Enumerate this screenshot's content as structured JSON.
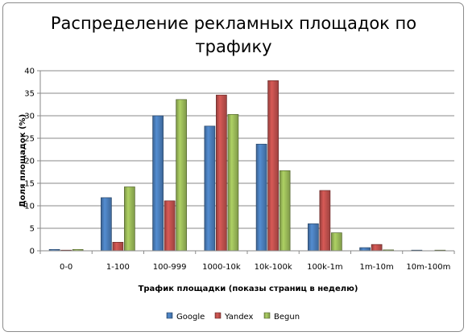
{
  "chart_data": {
    "type": "bar",
    "title_line1": "Распределение рекламных площадок по",
    "title_line2": "трафику",
    "xlabel": "Трафик площадки  (показы страниц  в неделю)",
    "ylabel": "Доля площадок (%)",
    "ylim": [
      0,
      40
    ],
    "ytick_step": 5,
    "grid": true,
    "legend_position": "bottom",
    "categories": [
      "0-0",
      "1-100",
      "100-999",
      "1000-10k",
      "10k-100k",
      "100k-1m",
      "1m-10m",
      "10m-100m"
    ],
    "series": [
      {
        "name": "Google",
        "color": "#4a7ebb",
        "values": [
          0.3,
          11.8,
          30.0,
          27.7,
          23.7,
          6.0,
          0.7,
          0.05
        ]
      },
      {
        "name": "Yandex",
        "color": "#c0504d",
        "values": [
          0.1,
          1.9,
          11.1,
          34.6,
          37.8,
          13.4,
          1.4,
          0.0
        ]
      },
      {
        "name": "Begun",
        "color": "#9bbb59",
        "values": [
          0.3,
          14.2,
          33.6,
          30.3,
          17.8,
          4.0,
          0.2,
          0.05
        ]
      }
    ]
  }
}
